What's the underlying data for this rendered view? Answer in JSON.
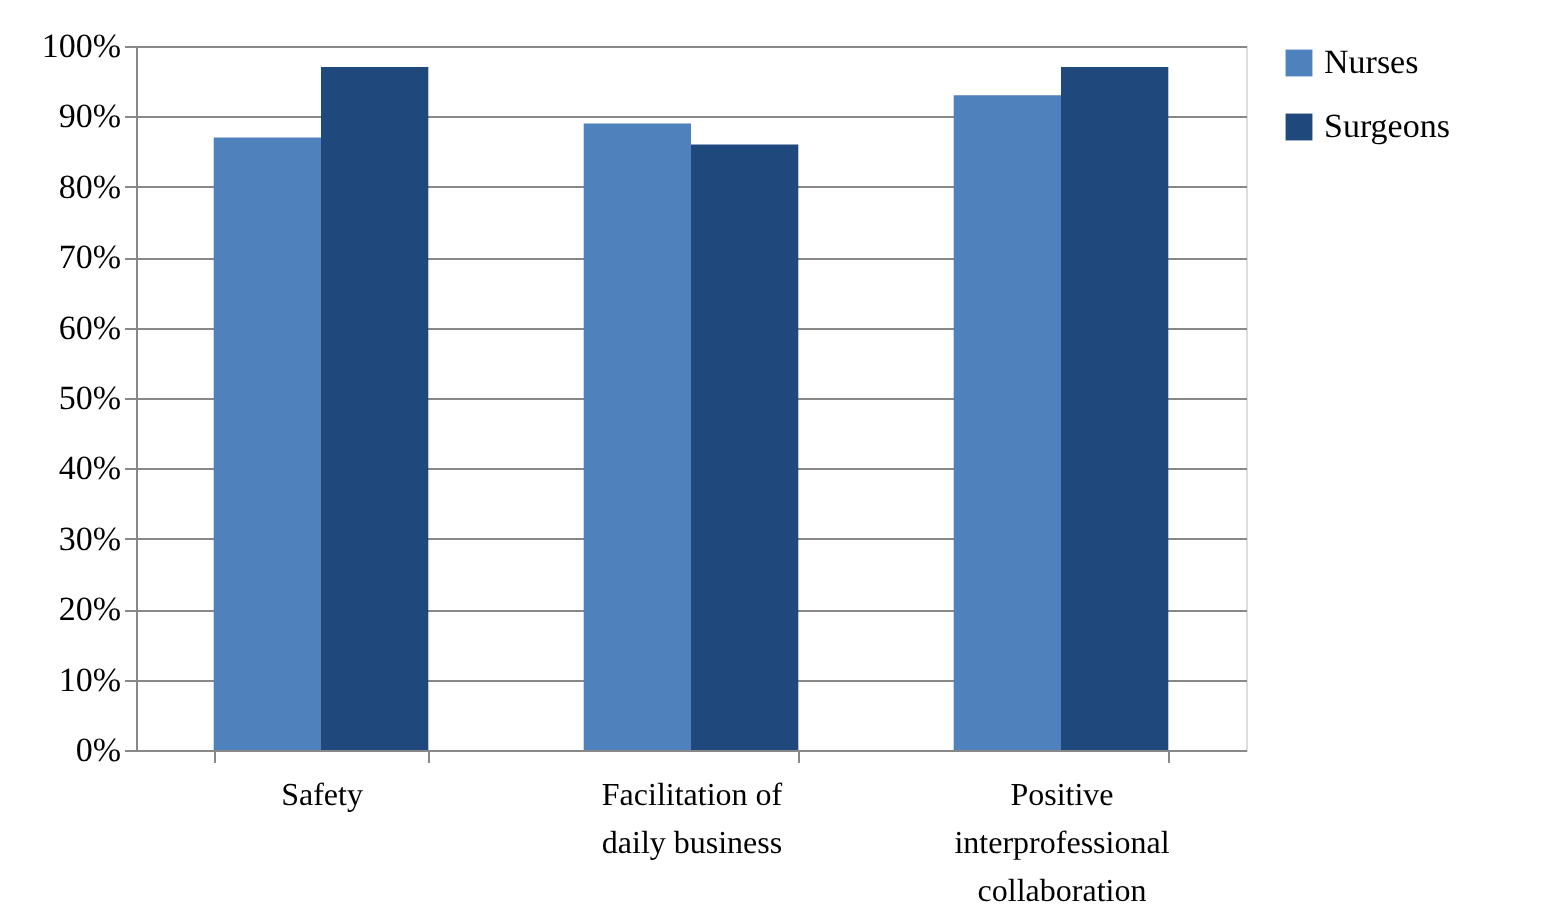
{
  "chart_data": {
    "type": "bar",
    "categories": [
      "Safety",
      "Facilitation of daily business",
      "Positive interprofessional collaboration"
    ],
    "series": [
      {
        "name": "Nurses",
        "color": "#4f81bd",
        "values": [
          87,
          89,
          93
        ]
      },
      {
        "name": "Surgeons",
        "color": "#1f497d",
        "values": [
          97,
          86,
          97
        ]
      }
    ],
    "ylim": [
      0,
      100
    ],
    "yticks": [
      {
        "value": 0,
        "label": "0%"
      },
      {
        "value": 10,
        "label": "10%"
      },
      {
        "value": 20,
        "label": "20%"
      },
      {
        "value": 30,
        "label": "30%"
      },
      {
        "value": 40,
        "label": "40%"
      },
      {
        "value": 50,
        "label": "50%"
      },
      {
        "value": 60,
        "label": "60%"
      },
      {
        "value": 70,
        "label": "70%"
      },
      {
        "value": 80,
        "label": "80%"
      },
      {
        "value": 90,
        "label": "90%"
      },
      {
        "value": 100,
        "label": "100%"
      }
    ],
    "grid": "y",
    "legend": "right"
  }
}
